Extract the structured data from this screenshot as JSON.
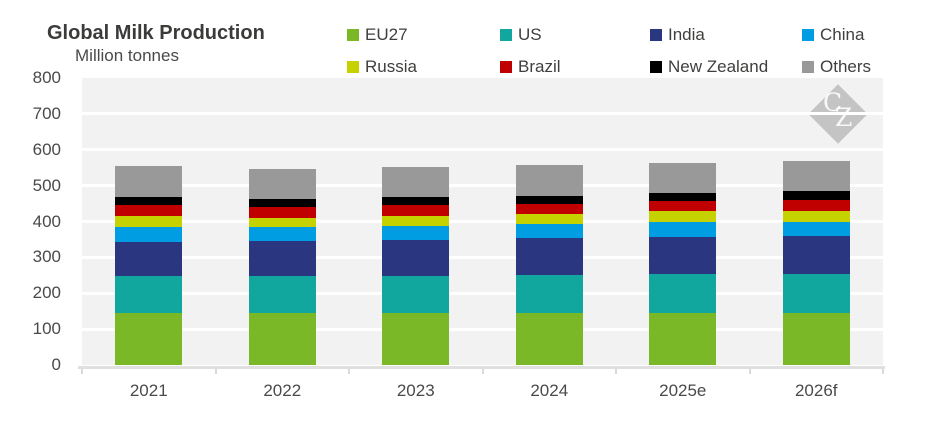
{
  "chart": {
    "title": "Global Milk Production",
    "subtitle": "Million tonnes"
  },
  "chart_data": {
    "type": "bar",
    "stacked": true,
    "title": "Global Milk Production",
    "ylabel": "Million tonnes",
    "categories": [
      "2021",
      "2022",
      "2023",
      "2024",
      "2025e",
      "2026f"
    ],
    "series": [
      {
        "name": "EU27",
        "color": "#7bb828",
        "values": [
          145,
          145,
          145,
          146,
          146,
          146
        ]
      },
      {
        "name": "US",
        "color": "#12a79e",
        "values": [
          102,
          103,
          103,
          105,
          107,
          108
        ]
      },
      {
        "name": "India",
        "color": "#2a3780",
        "values": [
          96,
          99,
          101,
          103,
          104,
          106
        ]
      },
      {
        "name": "China",
        "color": "#009de2",
        "values": [
          41,
          37,
          38,
          40,
          41,
          40
        ]
      },
      {
        "name": "Russia",
        "color": "#c6d200",
        "values": [
          31,
          27,
          28,
          28,
          31,
          30
        ]
      },
      {
        "name": "Brazil",
        "color": "#c00000",
        "values": [
          31,
          29,
          30,
          27,
          28,
          29
        ]
      },
      {
        "name": "New Zealand",
        "color": "#000000",
        "values": [
          23,
          22,
          23,
          23,
          24,
          25
        ]
      },
      {
        "name": "Others",
        "color": "#999999",
        "values": [
          86,
          84,
          85,
          85,
          82,
          85
        ]
      }
    ],
    "ylim": [
      0,
      800
    ],
    "ytick_step": 100,
    "yticks": [
      0,
      100,
      200,
      300,
      400,
      500,
      600,
      700,
      800
    ],
    "grid": "horizontal-white-on-gray",
    "legend_position": "top",
    "legend_columns": 4
  },
  "watermark": {
    "text": "CZ"
  },
  "style": {
    "plot_bg": "#f2f2f2",
    "gridline": "#ffffff",
    "axis_line": "#e0e0e0",
    "label_color": "#4a4a4a",
    "title_color": "#3b3b3a"
  }
}
